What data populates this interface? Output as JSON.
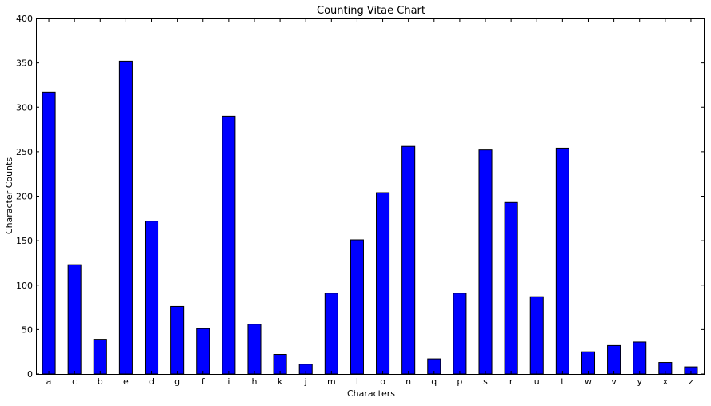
{
  "chart_data": {
    "type": "bar",
    "title": "Counting Vitae Chart",
    "xlabel": "Characters",
    "ylabel": "Character Counts",
    "categories": [
      "a",
      "c",
      "b",
      "e",
      "d",
      "g",
      "f",
      "i",
      "h",
      "k",
      "j",
      "m",
      "l",
      "o",
      "n",
      "q",
      "p",
      "s",
      "r",
      "u",
      "t",
      "w",
      "v",
      "y",
      "x",
      "z"
    ],
    "values": [
      317,
      123,
      39,
      352,
      172,
      76,
      51,
      290,
      56,
      22,
      11,
      91,
      151,
      204,
      256,
      17,
      91,
      252,
      193,
      87,
      254,
      25,
      32,
      36,
      13,
      8
    ],
    "ylim": [
      0,
      400
    ],
    "yticks": [
      0,
      50,
      100,
      150,
      200,
      250,
      300,
      350,
      400
    ],
    "bar_color": "#0000ff",
    "edge_color": "#000000",
    "grid": false,
    "legend": "none"
  }
}
